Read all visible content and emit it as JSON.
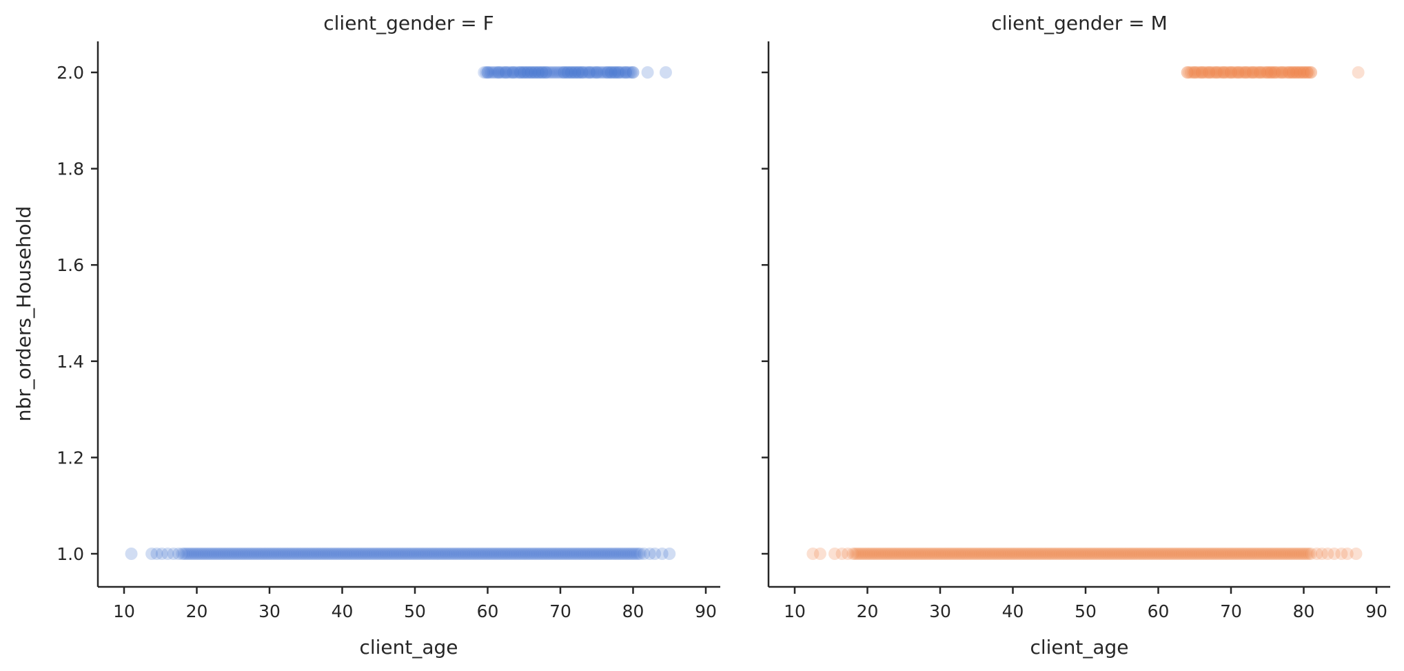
{
  "chart_data": [
    {
      "type": "scatter",
      "title": "client_gender = F",
      "xlabel": "client_age",
      "ylabel": "nbr_orders_Household",
      "xlim": [
        6.5,
        92
      ],
      "ylim": [
        0.935,
        2.065
      ],
      "xticks": [
        10,
        20,
        30,
        40,
        50,
        60,
        70,
        80,
        90
      ],
      "yticks": [
        1.0,
        1.2,
        1.4,
        1.6,
        1.8,
        2.0
      ],
      "ytick_labels": [
        "1.0",
        "1.2",
        "1.4",
        "1.6",
        "1.8",
        "2.0"
      ],
      "color": "#4878d0",
      "series": [
        {
          "y": 1.0,
          "dense_range": [
            18,
            81
          ],
          "x": [
            11,
            13.8,
            14.5,
            15.2,
            16.0,
            16.8,
            17.5,
            81.5,
            82.3,
            83.0,
            84.0,
            85.0
          ]
        },
        {
          "y": 2.0,
          "dense_range": [
            59.5,
            80
          ],
          "x": [
            60,
            61.5,
            62.5,
            63.5,
            64.5,
            65,
            65.5,
            66,
            66.5,
            67,
            67.5,
            68,
            70.5,
            71,
            71.5,
            72,
            72.5,
            73,
            74,
            75,
            76.5,
            77,
            77.5,
            78,
            79,
            80,
            82,
            84.5
          ]
        }
      ]
    },
    {
      "type": "scatter",
      "title": "client_gender = M",
      "xlabel": "client_age",
      "ylabel": "",
      "xlim": [
        6.5,
        92
      ],
      "ylim": [
        0.935,
        2.065
      ],
      "xticks": [
        10,
        20,
        30,
        40,
        50,
        60,
        70,
        80,
        90
      ],
      "yticks": [
        1.0,
        1.2,
        1.4,
        1.6,
        1.8,
        2.0
      ],
      "color": "#ee854a",
      "series": [
        {
          "y": 1.0,
          "dense_range": [
            18,
            81
          ],
          "x": [
            12.5,
            13.5,
            15.5,
            16.5,
            17.3,
            81.8,
            82.5,
            83.3,
            84.2,
            85.2,
            86.0,
            87.2
          ]
        },
        {
          "y": 2.0,
          "dense_range": [
            64,
            81
          ],
          "x": [
            64,
            65,
            66,
            67,
            68,
            69,
            70,
            71,
            72,
            73,
            74,
            75,
            75.5,
            76,
            77,
            78,
            78.5,
            79,
            79.5,
            80,
            80.5,
            81,
            87.5
          ]
        }
      ]
    }
  ]
}
